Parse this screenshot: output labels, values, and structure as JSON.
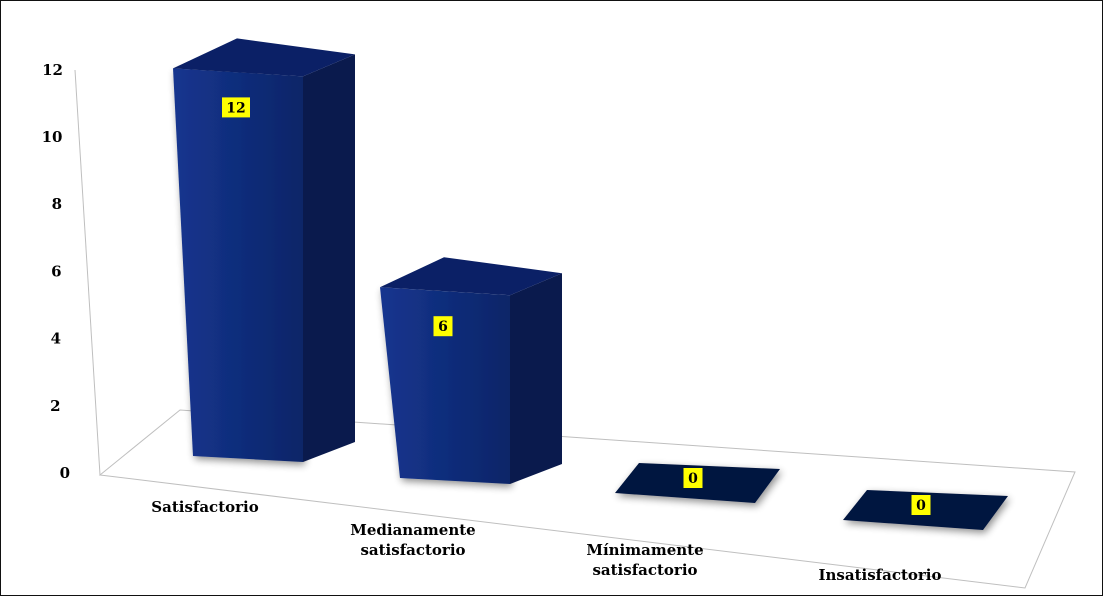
{
  "chart_data": {
    "type": "bar",
    "style": "3d-column",
    "categories": [
      "Satisfactorio",
      "Medianamente satisfactorio",
      "Mínimamente satisfactorio",
      "Insatisfactorio"
    ],
    "category_lines": [
      [
        "Satisfactorio"
      ],
      [
        "Medianamente",
        "satisfactorio"
      ],
      [
        "Mínimamente",
        "satisfactorio"
      ],
      [
        "Insatisfactorio"
      ]
    ],
    "values": [
      12,
      6,
      0,
      0
    ],
    "data_labels": [
      "12",
      "6",
      "0",
      "0"
    ],
    "ylim": [
      0,
      12
    ],
    "y_ticks": [
      0,
      2,
      4,
      6,
      8,
      10,
      12
    ],
    "y_tick_labels": [
      "0",
      "2",
      "4",
      "6",
      "8",
      "10",
      "12"
    ],
    "title": "",
    "xlabel": "",
    "ylabel": "",
    "grid": false,
    "legend": "none",
    "colors": {
      "bar_front": "#0f2a7a",
      "bar_side": "#0a1a4d",
      "bar_top": "#0b2066",
      "label_bg": "#ffff00",
      "axis": "#bfbfbf"
    }
  }
}
